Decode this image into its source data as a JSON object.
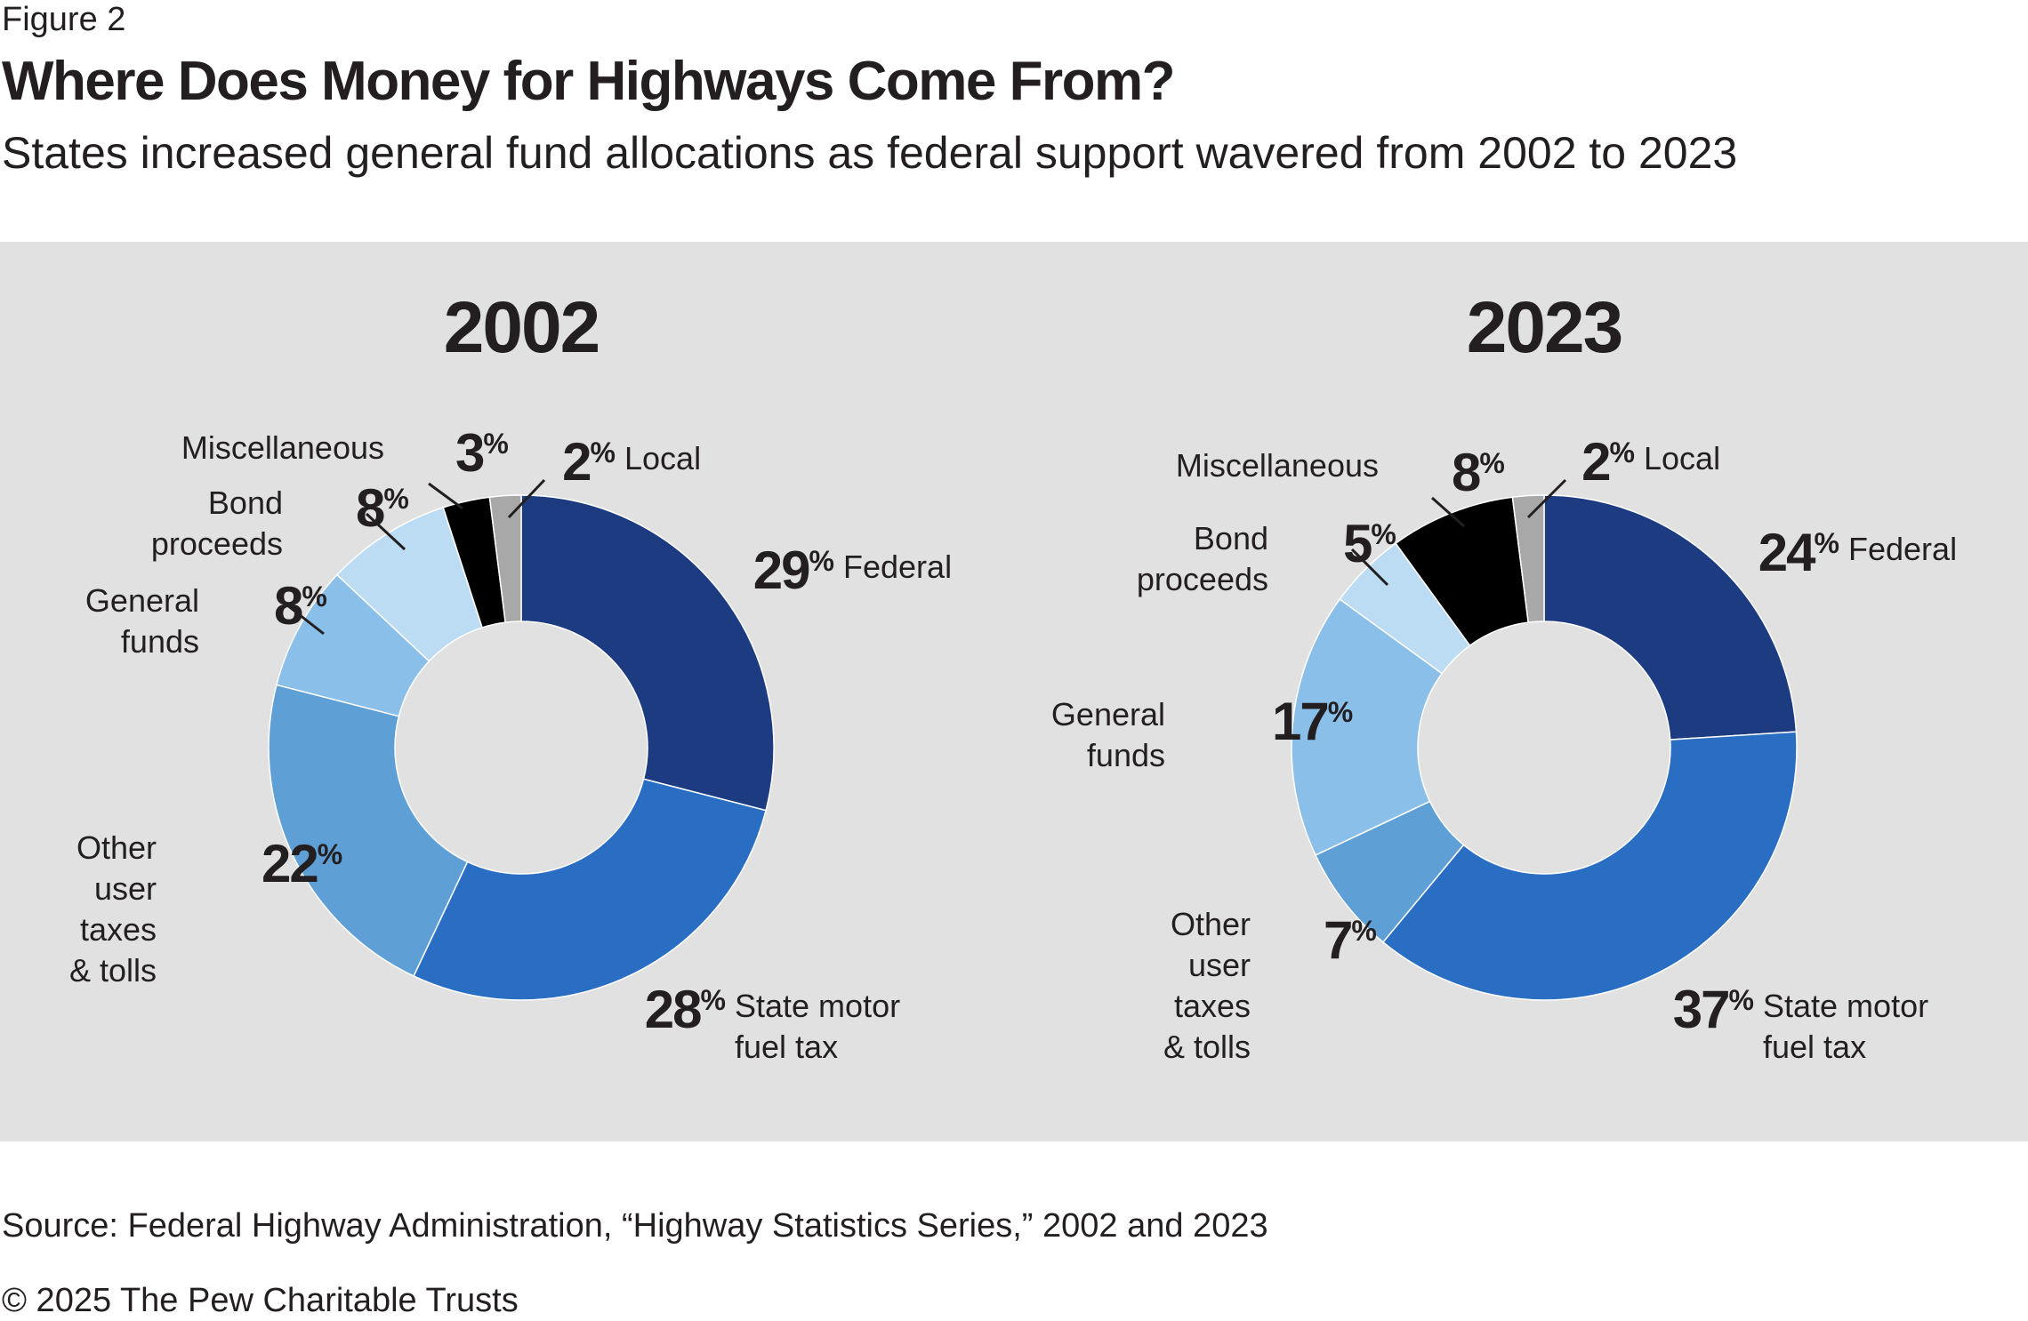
{
  "figure_label": "Figure 2",
  "title": "Where Does Money for Highways Come From?",
  "subtitle": "States increased general fund allocations as federal support wavered from 2002 to 2023",
  "source": "Source: Federal Highway Administration, “Highway Statistics Series,” 2002 and 2023",
  "copyright": "© 2025 The Pew Charitable Trusts",
  "colors": {
    "panel_background": "#e1e1e2",
    "federal": "#1c3b80",
    "state_motor_fuel_tax": "#2a6ec4",
    "other_user_taxes_tolls": "#5e9fd6",
    "general_funds": "#89bfe8",
    "bond_proceeds": "#bcdcf4",
    "miscellaneous": "#000000",
    "local": "#a8a8a8"
  },
  "chart_data": [
    {
      "type": "pie",
      "title": "2002",
      "categories": [
        "Federal",
        "State motor fuel tax",
        "Other user taxes & tolls",
        "General funds",
        "Bond proceeds",
        "Miscellaneous",
        "Local"
      ],
      "values": [
        29,
        28,
        22,
        8,
        8,
        3,
        2
      ],
      "labels": {
        "federal": [
          "Federal"
        ],
        "fuel": [
          "State motor",
          "fuel tax"
        ],
        "other": [
          "Other",
          "user",
          "taxes",
          "& tolls"
        ],
        "general": [
          "General",
          "funds"
        ],
        "bond": [
          "Bond",
          "proceeds"
        ],
        "misc": [
          "Miscellaneous"
        ],
        "local": [
          "Local"
        ]
      }
    },
    {
      "type": "pie",
      "title": "2023",
      "categories": [
        "Federal",
        "State motor fuel tax",
        "Other user taxes & tolls",
        "General funds",
        "Bond proceeds",
        "Miscellaneous",
        "Local"
      ],
      "values": [
        24,
        37,
        7,
        17,
        5,
        8,
        2
      ],
      "labels": {
        "federal": [
          "Federal"
        ],
        "fuel": [
          "State motor",
          "fuel tax"
        ],
        "other": [
          "Other",
          "user",
          "taxes",
          "& tolls"
        ],
        "general": [
          "General",
          "funds"
        ],
        "bond": [
          "Bond",
          "proceeds"
        ],
        "misc": [
          "Miscellaneous"
        ],
        "local": [
          "Local"
        ]
      }
    }
  ]
}
